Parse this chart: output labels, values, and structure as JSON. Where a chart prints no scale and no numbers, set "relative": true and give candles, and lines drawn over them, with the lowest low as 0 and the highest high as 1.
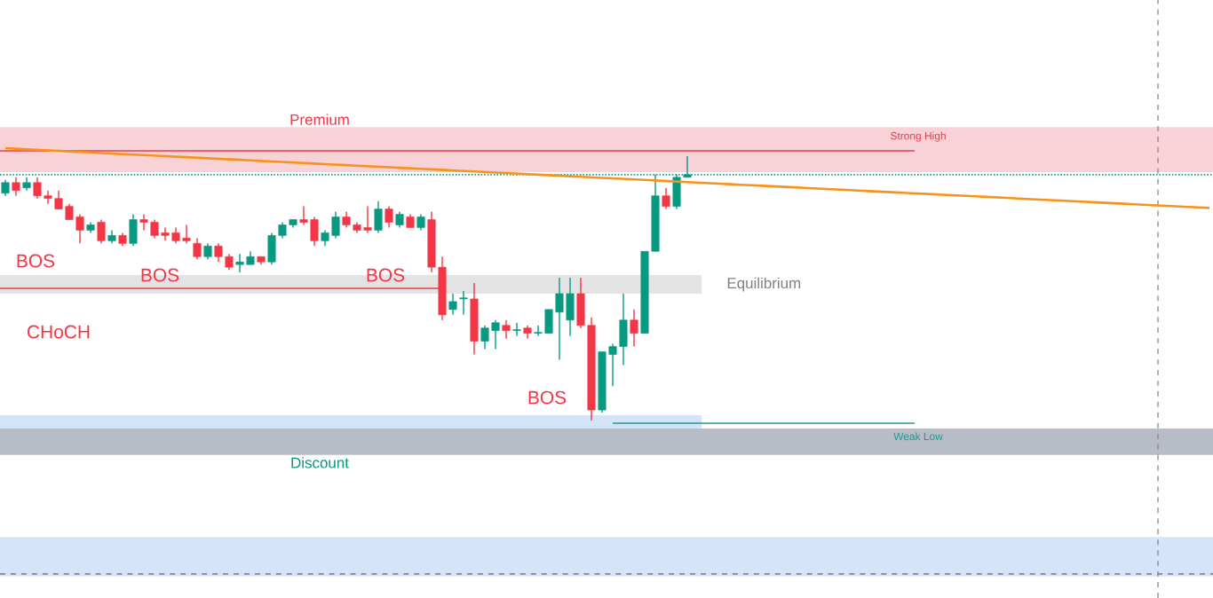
{
  "chart_data": {
    "type": "candlestick",
    "relative": true,
    "categories": [
      null,
      null,
      null,
      null,
      null,
      null,
      null,
      null,
      null,
      null,
      null,
      null,
      null,
      null,
      null,
      null,
      null,
      null,
      null,
      null,
      null,
      null,
      null,
      null,
      null,
      null,
      null,
      null,
      null,
      null,
      null,
      null,
      null,
      null,
      null,
      null,
      null,
      null,
      null,
      null,
      null,
      null,
      null,
      null,
      null,
      null,
      null,
      null,
      null,
      null,
      null,
      null,
      null,
      null,
      null,
      null,
      null,
      null,
      null,
      null,
      null,
      null,
      null,
      null,
      null,
      null,
      null,
      null,
      null,
      null,
      null,
      null,
      null,
      null,
      null,
      null,
      null,
      null,
      null,
      null,
      null,
      null,
      null,
      null,
      null,
      null,
      null,
      null,
      null,
      null,
      null,
      null,
      null,
      null,
      null,
      null,
      null,
      null,
      null,
      null,
      null,
      null,
      null,
      null,
      null,
      null,
      null,
      null,
      null,
      null,
      null,
      null,
      null,
      null
    ],
    "ohlc": [
      [
        0.86,
        0.91,
        0.85,
        0.9
      ],
      [
        0.9,
        0.92,
        0.85,
        0.87
      ],
      [
        0.88,
        0.92,
        0.87,
        0.9
      ],
      [
        0.9,
        0.92,
        0.84,
        0.85
      ],
      [
        0.85,
        0.87,
        0.82,
        0.84
      ],
      [
        0.84,
        0.87,
        0.8,
        0.8
      ],
      [
        0.81,
        0.82,
        0.76,
        0.76
      ],
      [
        0.77,
        0.78,
        0.67,
        0.72
      ],
      [
        0.72,
        0.75,
        0.71,
        0.74
      ],
      [
        0.75,
        0.76,
        0.67,
        0.68
      ],
      [
        0.68,
        0.72,
        0.67,
        0.7
      ],
      [
        0.7,
        0.71,
        0.66,
        0.67
      ],
      [
        0.67,
        0.78,
        0.66,
        0.76
      ],
      [
        0.76,
        0.78,
        0.72,
        0.75
      ],
      [
        0.75,
        0.76,
        0.69,
        0.7
      ],
      [
        0.71,
        0.73,
        0.68,
        0.7
      ],
      [
        0.71,
        0.73,
        0.67,
        0.68
      ],
      [
        0.69,
        0.74,
        0.67,
        0.68
      ],
      [
        0.67,
        0.69,
        0.61,
        0.62
      ],
      [
        0.62,
        0.67,
        0.61,
        0.66
      ],
      [
        0.66,
        0.67,
        0.6,
        0.62
      ],
      [
        0.62,
        0.63,
        0.57,
        0.58
      ],
      [
        0.59,
        0.63,
        0.56,
        0.6
      ],
      [
        0.59,
        0.64,
        0.59,
        0.62
      ],
      [
        0.62,
        0.62,
        0.59,
        0.6
      ],
      [
        0.6,
        0.71,
        0.59,
        0.7
      ],
      [
        0.7,
        0.75,
        0.69,
        0.74
      ],
      [
        0.74,
        0.76,
        0.73,
        0.76
      ],
      [
        0.76,
        0.81,
        0.74,
        0.75
      ],
      [
        0.76,
        0.77,
        0.66,
        0.68
      ],
      [
        0.68,
        0.72,
        0.66,
        0.71
      ],
      [
        0.7,
        0.79,
        0.69,
        0.77
      ],
      [
        0.77,
        0.79,
        0.73,
        0.74
      ],
      [
        0.74,
        0.75,
        0.71,
        0.72
      ],
      [
        0.73,
        0.81,
        0.71,
        0.72
      ],
      [
        0.72,
        0.83,
        0.71,
        0.8
      ],
      [
        0.8,
        0.81,
        0.73,
        0.75
      ],
      [
        0.74,
        0.79,
        0.73,
        0.78
      ],
      [
        0.77,
        0.78,
        0.73,
        0.73
      ],
      [
        0.73,
        0.78,
        0.72,
        0.77
      ],
      [
        0.76,
        0.79,
        0.56,
        0.58
      ],
      [
        0.58,
        0.62,
        0.38,
        0.4
      ],
      [
        0.42,
        0.48,
        0.4,
        0.45
      ],
      [
        0.46,
        0.49,
        0.4,
        0.46
      ],
      [
        0.46,
        0.52,
        0.25,
        0.3
      ],
      [
        0.3,
        0.36,
        0.27,
        0.35
      ],
      [
        0.34,
        0.38,
        0.27,
        0.37
      ],
      [
        0.36,
        0.38,
        0.31,
        0.34
      ],
      [
        0.34,
        0.37,
        0.32,
        0.34
      ],
      [
        0.35,
        0.36,
        0.31,
        0.33
      ],
      [
        0.33,
        0.36,
        0.32,
        0.33
      ],
      [
        0.33,
        0.42,
        0.33,
        0.42
      ],
      [
        0.41,
        0.54,
        0.23,
        0.48
      ],
      [
        0.38,
        0.54,
        0.32,
        0.48
      ],
      [
        0.48,
        0.54,
        0.35,
        0.36
      ],
      [
        0.36,
        0.39,
        0,
        0.04
      ],
      [
        0.04,
        0.26,
        0.03,
        0.26
      ],
      [
        0.25,
        0.29,
        0.13,
        0.28
      ],
      [
        0.28,
        0.48,
        0.21,
        0.38
      ],
      [
        0.38,
        0.42,
        0.28,
        0.33
      ],
      [
        0.33,
        0.64,
        0.33,
        0.64
      ],
      [
        0.64,
        0.93,
        0.64,
        0.85
      ],
      [
        0.85,
        0.88,
        0.8,
        0.81
      ],
      [
        0.81,
        0.93,
        0.8,
        0.92
      ],
      [
        0.92,
        1,
        0.92,
        0.93
      ],
      null,
      null,
      null,
      null,
      null,
      null,
      null,
      null,
      null,
      null,
      null,
      null,
      null,
      null,
      null,
      null,
      null,
      null,
      null,
      null,
      null,
      null,
      null,
      null,
      null,
      null,
      null,
      null,
      null,
      null,
      null,
      null,
      null,
      null,
      null,
      null,
      null,
      null,
      null,
      null,
      null,
      null,
      null,
      null,
      null,
      null,
      null,
      null,
      null
    ],
    "series": [
      {
        "type": "line",
        "color": "#f7931a",
        "values": [
          1.03,
          1.028,
          1.026,
          1.024,
          1.022,
          1.02,
          1.018,
          1.016,
          1.014,
          1.012,
          1.01,
          1.008,
          1.006,
          1.004,
          1.002,
          1.0,
          0.998,
          0.996,
          0.994,
          0.992,
          0.99,
          0.988,
          0.986,
          0.984,
          0.982,
          0.98,
          0.978,
          0.976,
          0.974,
          0.972,
          0.97,
          0.968,
          0.966,
          0.964,
          0.962,
          0.96,
          0.958,
          0.956,
          0.954,
          0.952,
          0.95,
          0.948,
          0.946,
          0.944,
          0.942,
          0.94,
          0.938,
          0.936,
          0.934,
          0.932,
          0.93,
          0.928,
          0.926,
          0.924,
          0.922,
          0.92,
          0.918,
          0.916,
          0.914,
          0.912,
          0.91,
          0.908,
          0.906,
          0.904,
          0.902,
          0.9,
          0.898,
          0.896,
          0.894,
          0.892,
          0.89,
          0.888,
          0.886,
          0.884,
          0.882,
          0.88,
          0.878,
          0.876,
          0.874,
          0.872,
          0.87,
          0.868,
          0.866,
          0.864,
          0.862,
          0.86,
          0.858,
          0.856,
          0.854,
          0.852,
          0.85,
          0.848,
          0.846,
          0.844,
          0.842,
          0.84,
          0.838,
          0.836,
          0.834,
          0.832,
          0.83,
          0.828,
          0.826,
          0.824,
          0.822,
          0.82,
          0.818,
          0.816,
          0.814,
          0.812,
          0.81,
          0.808,
          0.806,
          0.804
        ]
      }
    ],
    "bands": [
      {
        "axis": "y",
        "from": 0.94,
        "to": 1.11,
        "label": "Premium",
        "color": "#f8d2d6"
      },
      {
        "axis": "y",
        "from": 0.48,
        "to": 0.55,
        "label": "Equilibrium",
        "color": "#e3e3e3"
      },
      {
        "axis": "y",
        "from": -0.13,
        "to": -0.03,
        "label": "Discount",
        "color": "#b8bcc6"
      },
      {
        "axis": "y",
        "from": -0.03,
        "to": 0.02,
        "color": "#d3e3f8"
      },
      {
        "axis": "y",
        "from": -0.59,
        "to": -0.44,
        "color": "#d6e4fb"
      }
    ],
    "ref_lines": [
      {
        "axis": "y",
        "value": 1.02,
        "label": "Strong High",
        "color": "#e0404f",
        "line_style": "solid"
      },
      {
        "axis": "y",
        "value": 0.93,
        "color": "#22998a",
        "line_style": "dotted"
      },
      {
        "axis": "y",
        "value": 0.5,
        "color": "#e0404f",
        "line_style": "solid"
      },
      {
        "axis": "y",
        "value": -0.01,
        "label": "Weak Low",
        "color": "#22998a",
        "line_style": "solid"
      },
      {
        "axis": "y",
        "value": -0.58,
        "color": "#888888",
        "line_style": "dashed"
      }
    ],
    "annotations": [
      "BOS",
      "BOS",
      "BOS",
      "BOS",
      "CHoCH"
    ]
  }
}
